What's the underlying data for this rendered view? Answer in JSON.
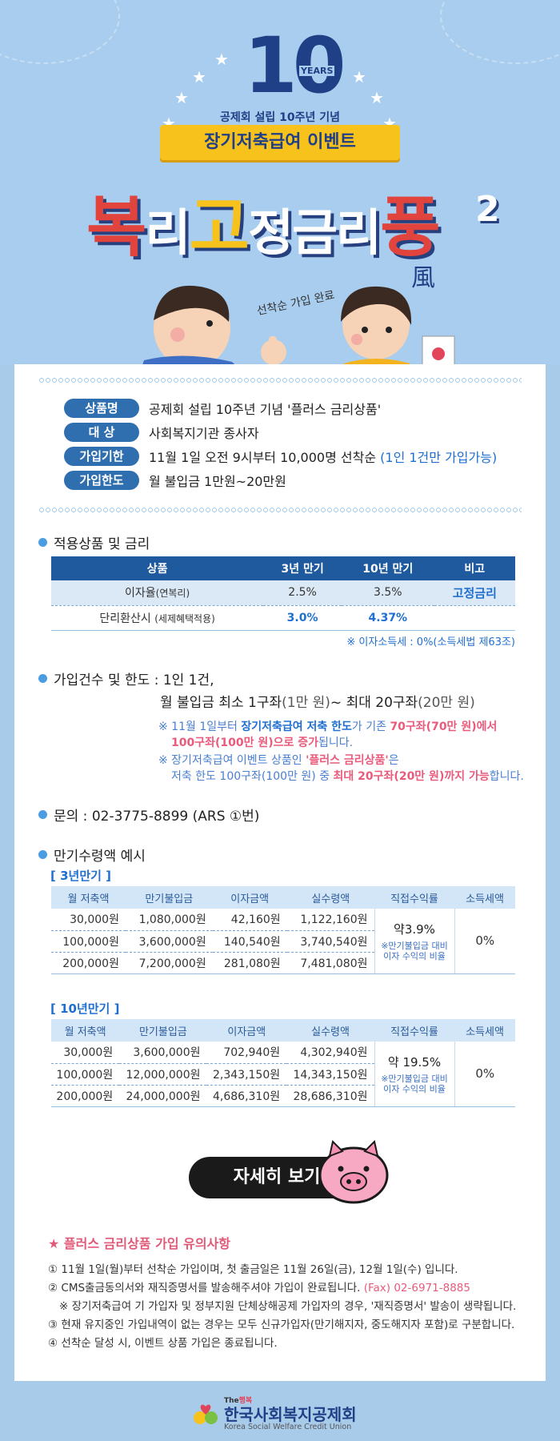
{
  "hero": {
    "ten": "10",
    "years": "YEARS",
    "establishment": "공제회 설립 10주년 기념",
    "event_title": "장기저축급여 이벤트",
    "title_chars": [
      "복",
      "리",
      "고",
      "정",
      "금",
      "리"
    ],
    "title_tail": "풍",
    "superscript": "2",
    "hanja": "風",
    "handwritten_note": "선착순 가입 완료"
  },
  "info": [
    {
      "label": "상품명",
      "value": "공제회 설립 10주년 기념 '플러스 금리상품'",
      "extra": ""
    },
    {
      "label": "대    상",
      "value": "사회복지기관 종사자",
      "extra": ""
    },
    {
      "label": "가입기한",
      "value": "11월 1일 오전 9시부터 10,000명 선착순 ",
      "extra": "(1인 1건만 가입가능)"
    },
    {
      "label": "가입한도",
      "value": "월 불입금 1만원~20만원",
      "extra": ""
    }
  ],
  "rates": {
    "title": "적용상품 및 금리",
    "headers": [
      "상품",
      "3년 만기",
      "10년 만기",
      "비고"
    ],
    "row1": {
      "label": "이자율",
      "sub": "(연복리)",
      "y3": "2.5%",
      "y10": "3.5%",
      "note": "고정금리"
    },
    "row2": {
      "label": "단리환산시 ",
      "sub": "(세제혜택적용)",
      "y3": "3.0%",
      "y10": "4.37%",
      "note": ""
    },
    "tax_note": "※ 이자소득세 : 0%(소득세법 제63조)"
  },
  "limits": {
    "title": "가입건수 및 한도 : 1인 1건,",
    "line2_a": "월 불입금 최소 1구좌",
    "line2_b": "(1만 원)",
    "line2_c": " ~ 최대 20구좌",
    "line2_d": "(20만 원)",
    "note1_a": "※ 11월 1일부터 ",
    "note1_b": "장기저축급여 저축 한도",
    "note1_c": "가 기존 ",
    "note1_d": "70구좌(70만 원)에서",
    "note1_e": "100구좌(100만 원)으로 증가",
    "note1_f": "됩니다.",
    "note2_a": "※ 장기저축급여 이벤트 상품인 ",
    "note2_b": "'플러스 금리상품'",
    "note2_c": "은",
    "note2_d": "저축 한도 100구좌(100만 원) 중 ",
    "note2_e": "최대 20구좌(20만 원)까지 가능",
    "note2_f": "합니다."
  },
  "contact": "문의 : 02-3775-8899 (ARS ①번)",
  "maturity": {
    "title": "만기수령액 예시",
    "headers": [
      "월 저축액",
      "만기불입금",
      "이자금액",
      "실수령액",
      "직접수익률",
      "소득세액"
    ],
    "three_year": {
      "label": "[ 3년만기 ]",
      "rows": [
        [
          "30,000원",
          "1,080,000원",
          "42,160원",
          "1,122,160원"
        ],
        [
          "100,000원",
          "3,600,000원",
          "140,540원",
          "3,740,540원"
        ],
        [
          "200,000원",
          "7,200,000원",
          "281,080원",
          "7,481,080원"
        ]
      ],
      "yield": "약3.9%",
      "yield_note1": "※만기불입금 대비",
      "yield_note2": "이자 수익의 비율",
      "tax": "0%"
    },
    "ten_year": {
      "label": "[ 10년만기 ]",
      "rows": [
        [
          "30,000원",
          "3,600,000원",
          "702,940원",
          "4,302,940원"
        ],
        [
          "100,000원",
          "12,000,000원",
          "2,343,150원",
          "14,343,150원"
        ],
        [
          "200,000원",
          "24,000,000원",
          "4,686,310원",
          "28,686,310원"
        ]
      ],
      "yield": "약 19.5%",
      "yield_note1": "※만기불입금 대비",
      "yield_note2": "이자 수익의 비율",
      "tax": "0%"
    }
  },
  "more_button": "자세히 보기",
  "caution": {
    "title": "★ 플러스 금리상품 가입 유의사항",
    "line1": "① 11월 1일(월)부터 선착순 가입이며, 첫 출금일은 11월 26일(금), 12월 1일(수) 입니다.",
    "line2": "② CMS출금동의서와 재직증명서를 발송해주셔야 가입이 완료됩니다. ",
    "line2_fax": "(Fax) 02-6971-8885",
    "line3": "※ 장기저축급여 기 가입자 및 정부지원 단체상해공제 가입자의 경우, '재직증명서' 발송이 생략됩니다.",
    "line4": "③ 현재 유지중인 가입내역이 없는 경우는 모두 신규가입자(만기해지자, 중도해지자 포함)로 구분합니다.",
    "line5": "④ 선착순 달성 시, 이벤트 상품 가입은 종료됩니다."
  },
  "footer": {
    "the": "The",
    "happy": "행복",
    "org_kr": "한국사회복지공제회",
    "org_en": "Korea Social Welfare Credit Union"
  },
  "colors": {
    "navy": "#1f3f86",
    "blue": "#1f6fd1",
    "pink": "#e95a7b",
    "yellow": "#f7c21c",
    "sky": "#a9cbea"
  }
}
